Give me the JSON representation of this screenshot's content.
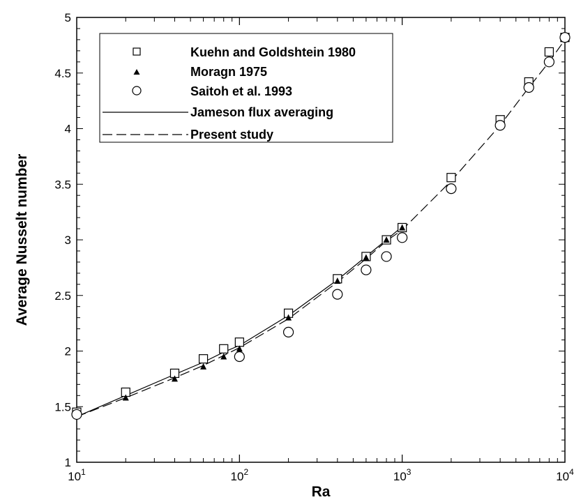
{
  "chart_data": {
    "type": "scatter",
    "xlabel": "Ra",
    "ylabel": "Average Nusselt number",
    "xscale": "log",
    "xlim": [
      10,
      10000
    ],
    "ylim": [
      1,
      5
    ],
    "x_ticks": [
      {
        "value": 10,
        "base": "10",
        "exp": "1"
      },
      {
        "value": 100,
        "base": "10",
        "exp": "2"
      },
      {
        "value": 1000,
        "base": "10",
        "exp": "3"
      },
      {
        "value": 10000,
        "base": "10",
        "exp": "4"
      }
    ],
    "y_ticks": [
      "1",
      "1.5",
      "2",
      "2.5",
      "3",
      "3.5",
      "4",
      "4.5",
      "5"
    ],
    "legend_position": "top-left",
    "series": [
      {
        "name": "Kuehn and Goldshtein 1980",
        "marker": "square",
        "x": [
          10,
          20,
          40,
          60,
          80,
          100,
          200,
          400,
          600,
          800,
          1000,
          2000,
          4000,
          6000,
          8000,
          10000
        ],
        "y": [
          1.45,
          1.63,
          1.8,
          1.93,
          2.02,
          2.08,
          2.34,
          2.65,
          2.85,
          3.0,
          3.11,
          3.56,
          4.08,
          4.42,
          4.69,
          4.82
        ]
      },
      {
        "name": "Moragn 1975",
        "marker": "triangle",
        "x": [
          20,
          40,
          60,
          80,
          100,
          200,
          400,
          600,
          800,
          1000,
          4000,
          6000,
          8000,
          10000
        ],
        "y": [
          1.58,
          1.75,
          1.86,
          1.95,
          2.02,
          2.3,
          2.63,
          2.84,
          3.0,
          3.11,
          4.04,
          4.36,
          4.6,
          4.82
        ]
      },
      {
        "name": "Saitoh et al. 1993",
        "marker": "circle",
        "x": [
          10,
          100,
          200,
          400,
          600,
          800,
          1000,
          2000,
          4000,
          6000,
          8000,
          10000
        ],
        "y": [
          1.43,
          1.95,
          2.17,
          2.51,
          2.73,
          2.85,
          3.02,
          3.46,
          4.03,
          4.37,
          4.6,
          4.82
        ]
      },
      {
        "name": "Jameson flux averaging",
        "line": "solid",
        "x": [
          10,
          20,
          40,
          60,
          80,
          100,
          200,
          400,
          600,
          800,
          1000
        ],
        "y": [
          1.41,
          1.6,
          1.79,
          1.9,
          1.99,
          2.05,
          2.32,
          2.64,
          2.85,
          3.0,
          3.12
        ]
      },
      {
        "name": "Present study",
        "line": "dashed",
        "x": [
          10,
          20,
          40,
          60,
          80,
          100,
          200,
          400,
          600,
          800,
          1000,
          2000,
          4000,
          6000,
          8000,
          10000
        ],
        "y": [
          1.41,
          1.58,
          1.76,
          1.87,
          1.96,
          2.03,
          2.29,
          2.62,
          2.83,
          2.99,
          3.09,
          3.53,
          4.03,
          4.37,
          4.6,
          4.8
        ]
      }
    ]
  }
}
